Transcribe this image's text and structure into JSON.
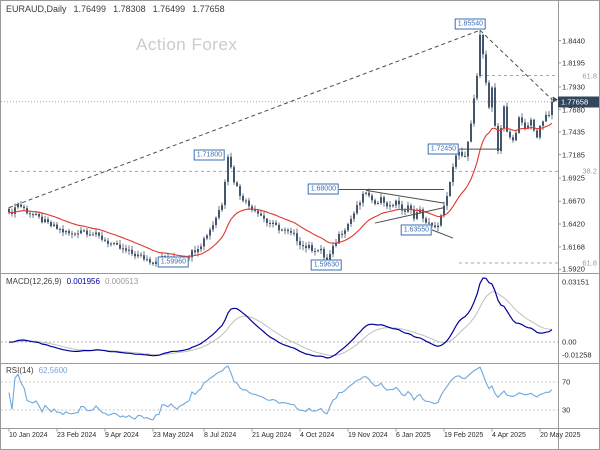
{
  "watermark": "Action Forex",
  "header": {
    "symbol": "EURAUD,Daily",
    "open": "1.76499",
    "high": "1.78308",
    "low": "1.76499",
    "close": "1.77658"
  },
  "colors": {
    "candle": "#44566b",
    "ma_line": "#e0382e",
    "macd_line": "#00009c",
    "macd_signal": "#bfbfbf",
    "rsi_line": "#6fa8dc",
    "level_box": "#3b6fb5",
    "price_tag_bg": "#33475c",
    "fib": "#a8a8a8",
    "trend": "#4d4d4d",
    "separator": "#9a9a9a",
    "dotted": "#999999",
    "watermark": "#cbcbcb"
  },
  "chart_data": {
    "type": "candlestick",
    "symbol": "EURAUD",
    "timeframe": "Daily",
    "current_price": "1.77658",
    "bars_total": 182,
    "y_axis": {
      "labels": [
        "1.8440",
        "1.8195",
        "1.7930",
        "1.7680",
        "1.7435",
        "1.7185",
        "1.6925",
        "1.6670",
        "1.6420",
        "1.6168",
        "1.5920"
      ],
      "top_price": 1.87,
      "bottom_price": 1.588
    },
    "x_axis": {
      "labels": [
        "10 Jan 2024",
        "23 Feb 2024",
        "9 Apr 2024",
        "23 May 2024",
        "8 Jul 2024",
        "21 Aug 2024",
        "4 Oct 2024",
        "19 Nov 2024",
        "6 Jan 2025",
        "19 Feb 2025",
        "4 Apr 2025",
        "20 May 2025"
      ],
      "bars": [
        0,
        16,
        32,
        48,
        65,
        81,
        97,
        113,
        129,
        145,
        161,
        177
      ]
    },
    "price_anchors": [
      [
        0,
        1.652
      ],
      [
        3,
        1.664
      ],
      [
        6,
        1.656
      ],
      [
        10,
        1.648
      ],
      [
        14,
        1.64
      ],
      [
        18,
        1.634
      ],
      [
        21,
        1.63
      ],
      [
        24,
        1.636
      ],
      [
        28,
        1.631
      ],
      [
        31,
        1.626
      ],
      [
        35,
        1.618
      ],
      [
        39,
        1.612
      ],
      [
        43,
        1.607
      ],
      [
        48,
        1.6005
      ],
      [
        52,
        1.606
      ],
      [
        56,
        1.6015
      ],
      [
        60,
        1.608
      ],
      [
        64,
        1.62
      ],
      [
        68,
        1.642
      ],
      [
        71,
        1.665
      ],
      [
        73,
        1.718
      ],
      [
        75,
        1.69
      ],
      [
        77,
        1.675
      ],
      [
        80,
        1.662
      ],
      [
        83,
        1.656
      ],
      [
        86,
        1.644
      ],
      [
        89,
        1.639
      ],
      [
        92,
        1.634
      ],
      [
        95,
        1.629
      ],
      [
        98,
        1.618
      ],
      [
        101,
        1.615
      ],
      [
        104,
        1.612
      ],
      [
        106,
        1.6
      ],
      [
        108,
        1.615
      ],
      [
        110,
        1.63
      ],
      [
        113,
        1.642
      ],
      [
        116,
        1.66
      ],
      [
        119,
        1.678
      ],
      [
        121,
        1.665
      ],
      [
        124,
        1.67
      ],
      [
        127,
        1.66
      ],
      [
        129,
        1.668
      ],
      [
        131,
        1.655
      ],
      [
        133,
        1.662
      ],
      [
        135,
        1.65
      ],
      [
        137,
        1.656
      ],
      [
        139,
        1.644
      ],
      [
        142,
        1.636
      ],
      [
        144,
        1.65
      ],
      [
        146,
        1.67
      ],
      [
        148,
        1.705
      ],
      [
        150,
        1.7245
      ],
      [
        152,
        1.715
      ],
      [
        154,
        1.75
      ],
      [
        156,
        1.805
      ],
      [
        157,
        1.852
      ],
      [
        158,
        1.83
      ],
      [
        159,
        1.795
      ],
      [
        160,
        1.77
      ],
      [
        161,
        1.795
      ],
      [
        162,
        1.75
      ],
      [
        163,
        1.7245
      ],
      [
        164,
        1.748
      ],
      [
        165,
        1.77
      ],
      [
        166,
        1.742
      ],
      [
        168,
        1.733
      ],
      [
        170,
        1.758
      ],
      [
        172,
        1.745
      ],
      [
        174,
        1.756
      ],
      [
        176,
        1.738
      ],
      [
        178,
        1.756
      ],
      [
        180,
        1.762
      ],
      [
        181,
        1.7766
      ]
    ],
    "key_extremes": {
      "high": 1.8554,
      "high_bar": 157,
      "low_1": 1.5996,
      "low_1_bar": 50,
      "low_2": 1.5963,
      "low_2_bar": 106
    },
    "level_labels": [
      {
        "text": "1.85540",
        "bar": 159,
        "price": 1.862
      },
      {
        "text": "1.71800",
        "bar": 72,
        "price": 1.718
      },
      {
        "text": "1.68000",
        "bar": 110,
        "price": 1.68
      },
      {
        "text": "1.72450",
        "bar": 150,
        "price": 1.7245
      },
      {
        "text": "1.63550",
        "bar": 141,
        "price": 1.6355
      },
      {
        "text": "1.59960",
        "bar": 60,
        "price": 1.5996
      },
      {
        "text": "1.59630",
        "bar": 111,
        "price": 1.5963
      }
    ],
    "fib_levels": [
      {
        "text": "61.8",
        "price": 1.8055,
        "from_bar": 157
      },
      {
        "text": "38.2",
        "price": 1.7,
        "from_bar": 0
      },
      {
        "text": "61.8",
        "price": 1.599,
        "from_bar": 150
      }
    ],
    "trendlines": [
      {
        "name": "ascending-trendline",
        "b1": 0,
        "p1": 1.66,
        "b2": 157,
        "p2": 1.8554,
        "dash": "4,3"
      },
      {
        "name": "descending-trendline",
        "b1": 157,
        "p1": 1.8554,
        "b2": 181,
        "p2": 1.779,
        "dash": "4,3",
        "arrow": true
      },
      {
        "name": "wedge-upper-line",
        "b1": 119,
        "p1": 1.679,
        "b2": 145,
        "p2": 1.665
      },
      {
        "name": "wedge-lower-line",
        "b1": 122,
        "p1": 1.643,
        "b2": 145,
        "p2": 1.66
      },
      {
        "name": "low-pointer-line",
        "b1": 141,
        "p1": 1.6355,
        "b2": 148,
        "p2": 1.6265
      }
    ],
    "hlines": [
      {
        "name": "resistance-1-6800",
        "price": 1.68,
        "b1": 110,
        "b2": 145
      },
      {
        "name": "support-1-7245",
        "price": 1.7245,
        "b1": 150,
        "b2": 164
      }
    ],
    "indicators": {
      "ma": {
        "period": 20
      },
      "macd": {
        "label": "MACD(12,26,9)",
        "value": "0.001956",
        "signal_value": "0.000513",
        "axis_top": "0.03151",
        "axis_zero": "0.00",
        "axis_bottom": "-0.01258"
      },
      "rsi": {
        "label": "RSI(14)",
        "value": "62,5600",
        "levels": [
          70,
          30
        ],
        "axis_labels": [
          "70",
          "30"
        ]
      }
    }
  }
}
